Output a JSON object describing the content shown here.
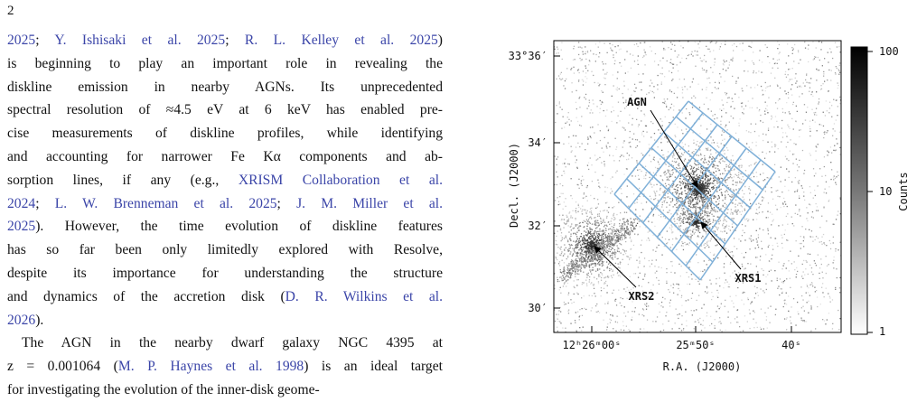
{
  "page_number": "2",
  "text": [
    [
      {
        "cite": "2025"
      },
      "; ",
      {
        "cite": "Y. Ishisaki et al. 2025"
      },
      "; ",
      {
        "cite": "R. L. Kelley et al. 2025"
      },
      ")"
    ],
    [
      "is beginning to play an important role in revealing the"
    ],
    [
      "diskline emission in nearby AGNs. Its unprecedented"
    ],
    [
      "spectral resolution of ≈4.5 eV at 6 keV has enabled pre-"
    ],
    [
      "cise measurements of diskline profiles, while identifying"
    ],
    [
      "and accounting for narrower Fe Kα components and ab-"
    ],
    [
      "sorption lines, if any (e.g., ",
      {
        "cite": "XRISM Collaboration et al."
      }
    ],
    [
      {
        "cite": "2024"
      },
      "; ",
      {
        "cite": "L. W. Brenneman et al. 2025"
      },
      "; ",
      {
        "cite": "J. M. Miller et al."
      }
    ],
    [
      {
        "cite": "2025"
      },
      "). However, the time evolution of diskline features"
    ],
    [
      "has so far been only limitedly explored with Resolve,"
    ],
    [
      "despite its importance for understanding the structure"
    ],
    [
      "and dynamics of the accretion disk (",
      {
        "cite": "D. R. Wilkins et al."
      }
    ],
    [
      {
        "cite": "2026"
      },
      ")."
    ],
    [
      "The AGN in the nearby dwarf galaxy NGC 4395 at"
    ],
    [
      "z = 0.001064 (",
      {
        "cite": "M. P. Haynes et al. 1998"
      },
      ") is an ideal target"
    ],
    [
      "for investigating the evolution of the inner-disk geome-"
    ]
  ],
  "figure": {
    "y_ticks": [
      "33°36′",
      "34′",
      "32′",
      "30′"
    ],
    "x_ticks": [
      "12ʰ26ᵐ00ˢ",
      "25ᵐ50ˢ",
      "40ˢ"
    ],
    "x_label": "R.A. (J2000)",
    "y_label": "Decl. (J2000)",
    "colorbar_ticks": [
      "100",
      "10",
      "1"
    ],
    "colorbar_label": "Counts",
    "annotations": [
      "AGN",
      "XRS1",
      "XRS2"
    ]
  }
}
